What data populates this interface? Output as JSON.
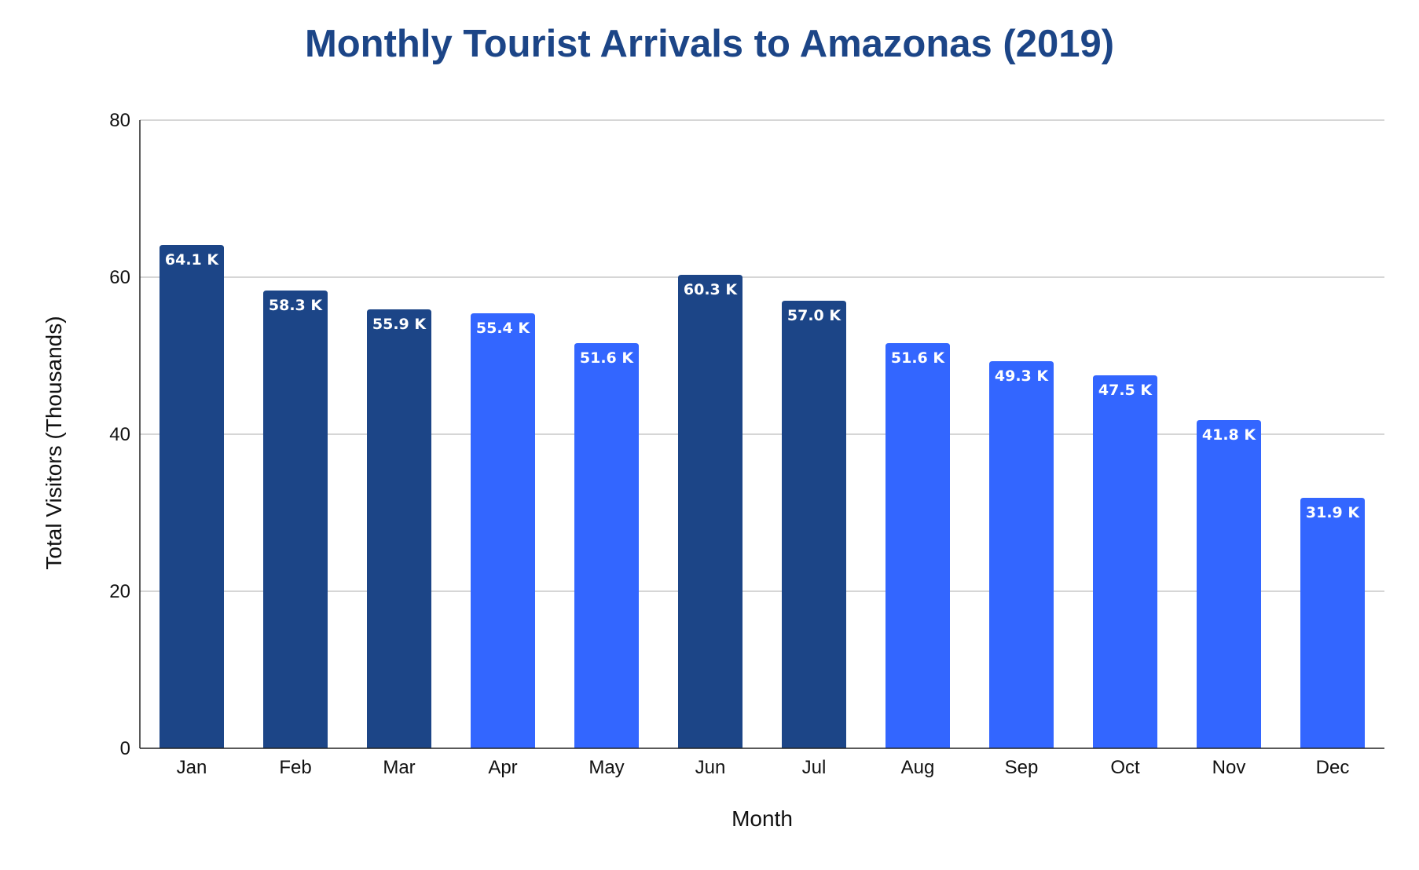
{
  "chart_data": {
    "type": "bar",
    "title": "Monthly Tourist Arrivals to Amazonas (2019)",
    "xlabel": "Month",
    "ylabel": "Total Visitors (Thousands)",
    "categories": [
      "Jan",
      "Feb",
      "Mar",
      "Apr",
      "May",
      "Jun",
      "Jul",
      "Aug",
      "Sep",
      "Oct",
      "Nov",
      "Dec"
    ],
    "values": [
      64.1,
      58.3,
      55.9,
      55.4,
      51.6,
      60.3,
      57.0,
      51.6,
      49.3,
      47.5,
      41.8,
      31.9
    ],
    "data_labels": [
      "64.1 K",
      "58.3 K",
      "55.9 K",
      "55.4 K",
      "51.6 K",
      "60.3 K",
      "57.0 K",
      "51.6 K",
      "49.3 K",
      "47.5 K",
      "41.8 K",
      "31.9 K"
    ],
    "bar_colors": [
      "#1c4587",
      "#1c4587",
      "#1c4587",
      "#3366ff",
      "#3366ff",
      "#1c4587",
      "#1c4587",
      "#3366ff",
      "#3366ff",
      "#3366ff",
      "#3366ff",
      "#3366ff"
    ],
    "ylim": [
      0,
      80
    ],
    "yticks": [
      0,
      20,
      40,
      60,
      80
    ],
    "grid": true,
    "legend": "none",
    "colors": {
      "title": "#1c4587",
      "dark_bar": "#1c4587",
      "light_bar": "#3366ff",
      "gridline": "#c8c8c8",
      "axis": "#222222"
    }
  }
}
